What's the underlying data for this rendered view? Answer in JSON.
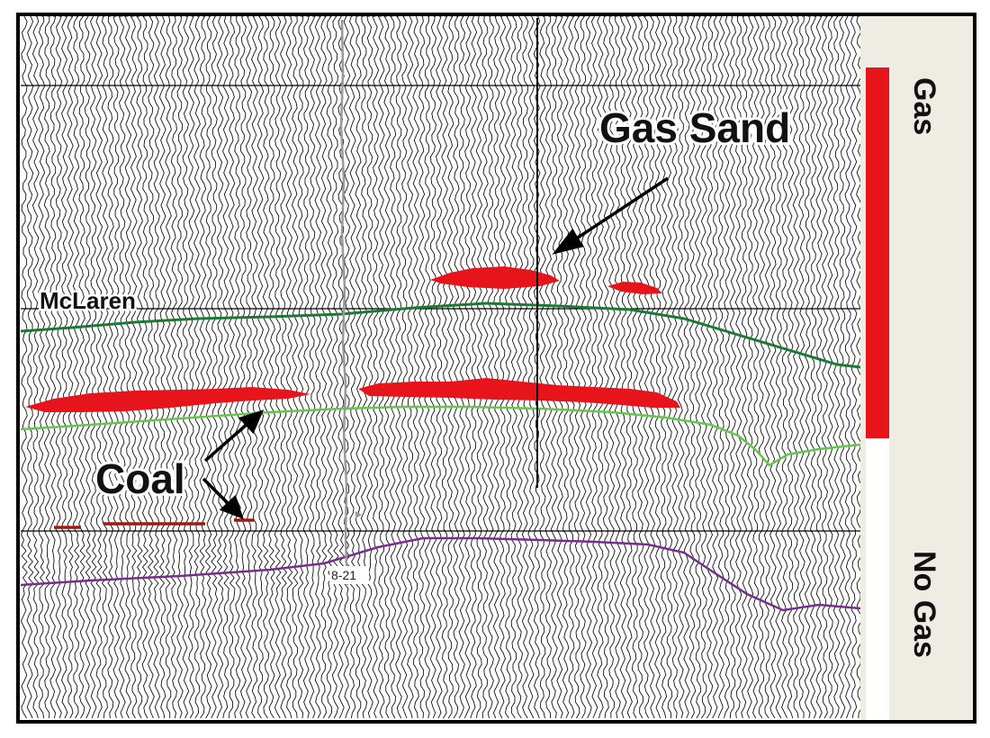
{
  "annotations": {
    "gas_sand": "Gas Sand",
    "mclaren": "McLaren",
    "coal": "Coal",
    "well_label": "8-21"
  },
  "scale_bar": {
    "top_label": "Gas",
    "bottom_label": "No Gas",
    "gas_fraction": 0.5
  },
  "colors": {
    "anomaly": "#e8141b",
    "coal_trace": "#a11a12",
    "mclaren_horizon": "#1d7a35",
    "lower_horizon": "#65c64c",
    "purple_horizon": "#7b2d8e",
    "well_track": "#9a9a9a",
    "scale_panel": "#efece3"
  }
}
